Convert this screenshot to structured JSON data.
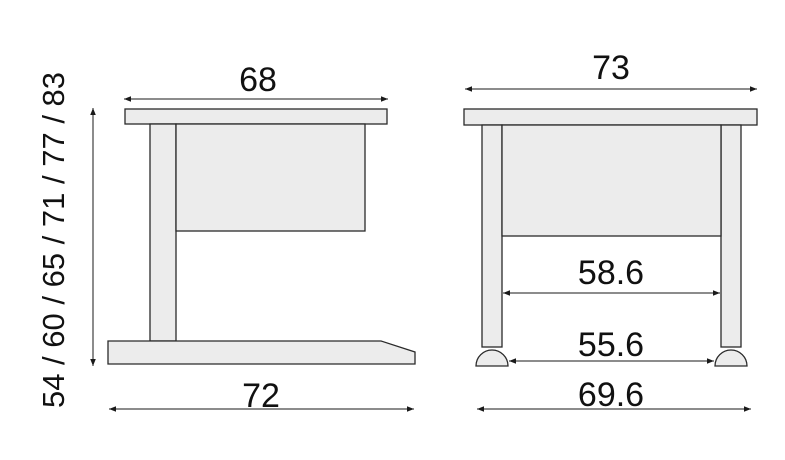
{
  "side_view": {
    "top_width": "68",
    "base_width": "72",
    "heights": "54 / 60 / 65 / 71 / 77 / 83"
  },
  "front_view": {
    "top_width": "73",
    "inner_width_upper": "58.6",
    "inner_width_lower": "55.6",
    "foot_width": "69.6"
  },
  "colors": {
    "outline": "#2a2a2a",
    "fill": "#ececec",
    "dimension": "#1a1a1a"
  }
}
